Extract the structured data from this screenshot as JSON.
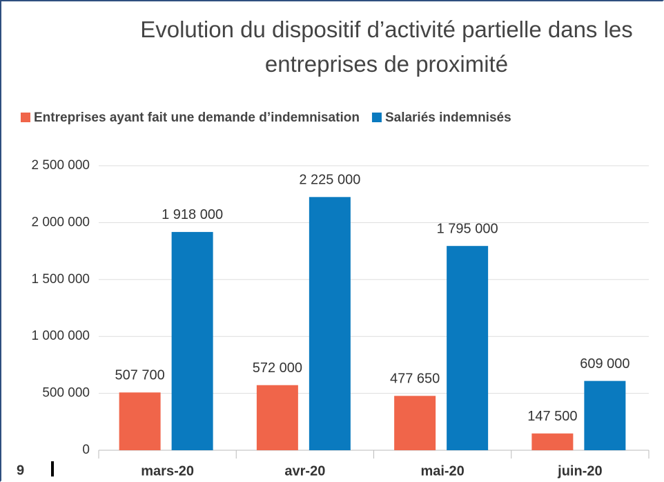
{
  "page_number": "9",
  "chart_data": {
    "type": "bar",
    "title": "Evolution du dispositif d’activité partielle dans les entreprises de proximité",
    "categories": [
      "mars-20",
      "avr-20",
      "mai-20",
      "juin-20"
    ],
    "series": [
      {
        "name": "Entreprises ayant fait une demande d’indemnisation",
        "color": "#f0654a",
        "values": [
          507700,
          572000,
          477650,
          147500
        ],
        "value_labels": [
          "507 700",
          "572 000",
          "477 650",
          "147 500"
        ]
      },
      {
        "name": "Salariés indemnisés",
        "color": "#0a7abf",
        "values": [
          1918000,
          2225000,
          1795000,
          609000
        ],
        "value_labels": [
          "1 918 000",
          "2 225 000",
          "1 795 000",
          "609 000"
        ]
      }
    ],
    "ylim": [
      0,
      2500000
    ],
    "yticks": [
      0,
      {
        "value": 500000,
        "label": "500 000"
      },
      {
        "value": 1000000,
        "label": "1 000 000"
      },
      {
        "value": 1500000,
        "label": "1 500 000"
      },
      {
        "value": 2000000,
        "label": "2 000 000"
      },
      {
        "value": 2500000,
        "label": "2 500 000"
      }
    ],
    "grid": true,
    "legend": "top"
  }
}
